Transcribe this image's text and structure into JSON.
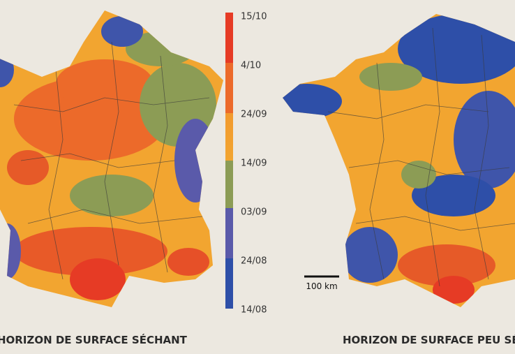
{
  "legend": {
    "labels": [
      "15/10",
      "4/10",
      "24/09",
      "14/09",
      "03/09",
      "24/08",
      "14/08"
    ]
  },
  "maps": [
    {
      "title": "HORIZON DE SURFACE SÉCHANT"
    },
    {
      "title": "HORIZON DE SURFACE PEU SÉC"
    }
  ],
  "scale": "100 km"
}
